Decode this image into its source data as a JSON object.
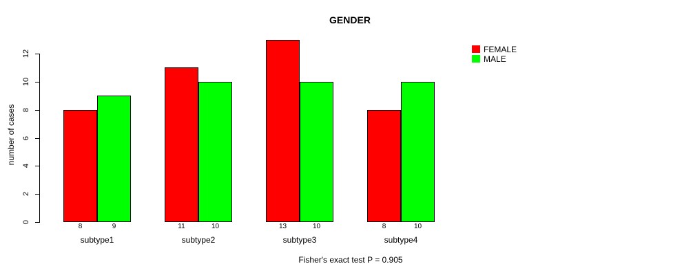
{
  "title": "GENDER",
  "caption": "Fisher's exact test P = 0.905",
  "colors": {
    "female": "#FF0000",
    "male": "#00FF00",
    "axis": "#000000",
    "background": "#FFFFFF"
  },
  "chart_data": {
    "type": "bar",
    "title": "GENDER",
    "categories": [
      "subtype1",
      "subtype2",
      "subtype3",
      "subtype4"
    ],
    "series": [
      {
        "name": "FEMALE",
        "color": "#FF0000",
        "values": [
          8,
          11,
          13,
          8
        ]
      },
      {
        "name": "MALE",
        "color": "#00FF00",
        "values": [
          9,
          10,
          10,
          10
        ]
      }
    ],
    "xlabel": "",
    "ylabel": "number of cases",
    "yticks": [
      0,
      2,
      4,
      6,
      8,
      10,
      12
    ],
    "ylim": [
      0,
      13
    ],
    "grid": false,
    "bar_value_labels": true,
    "legend_position": "topright",
    "annotation": "Fisher's exact test P = 0.905"
  }
}
